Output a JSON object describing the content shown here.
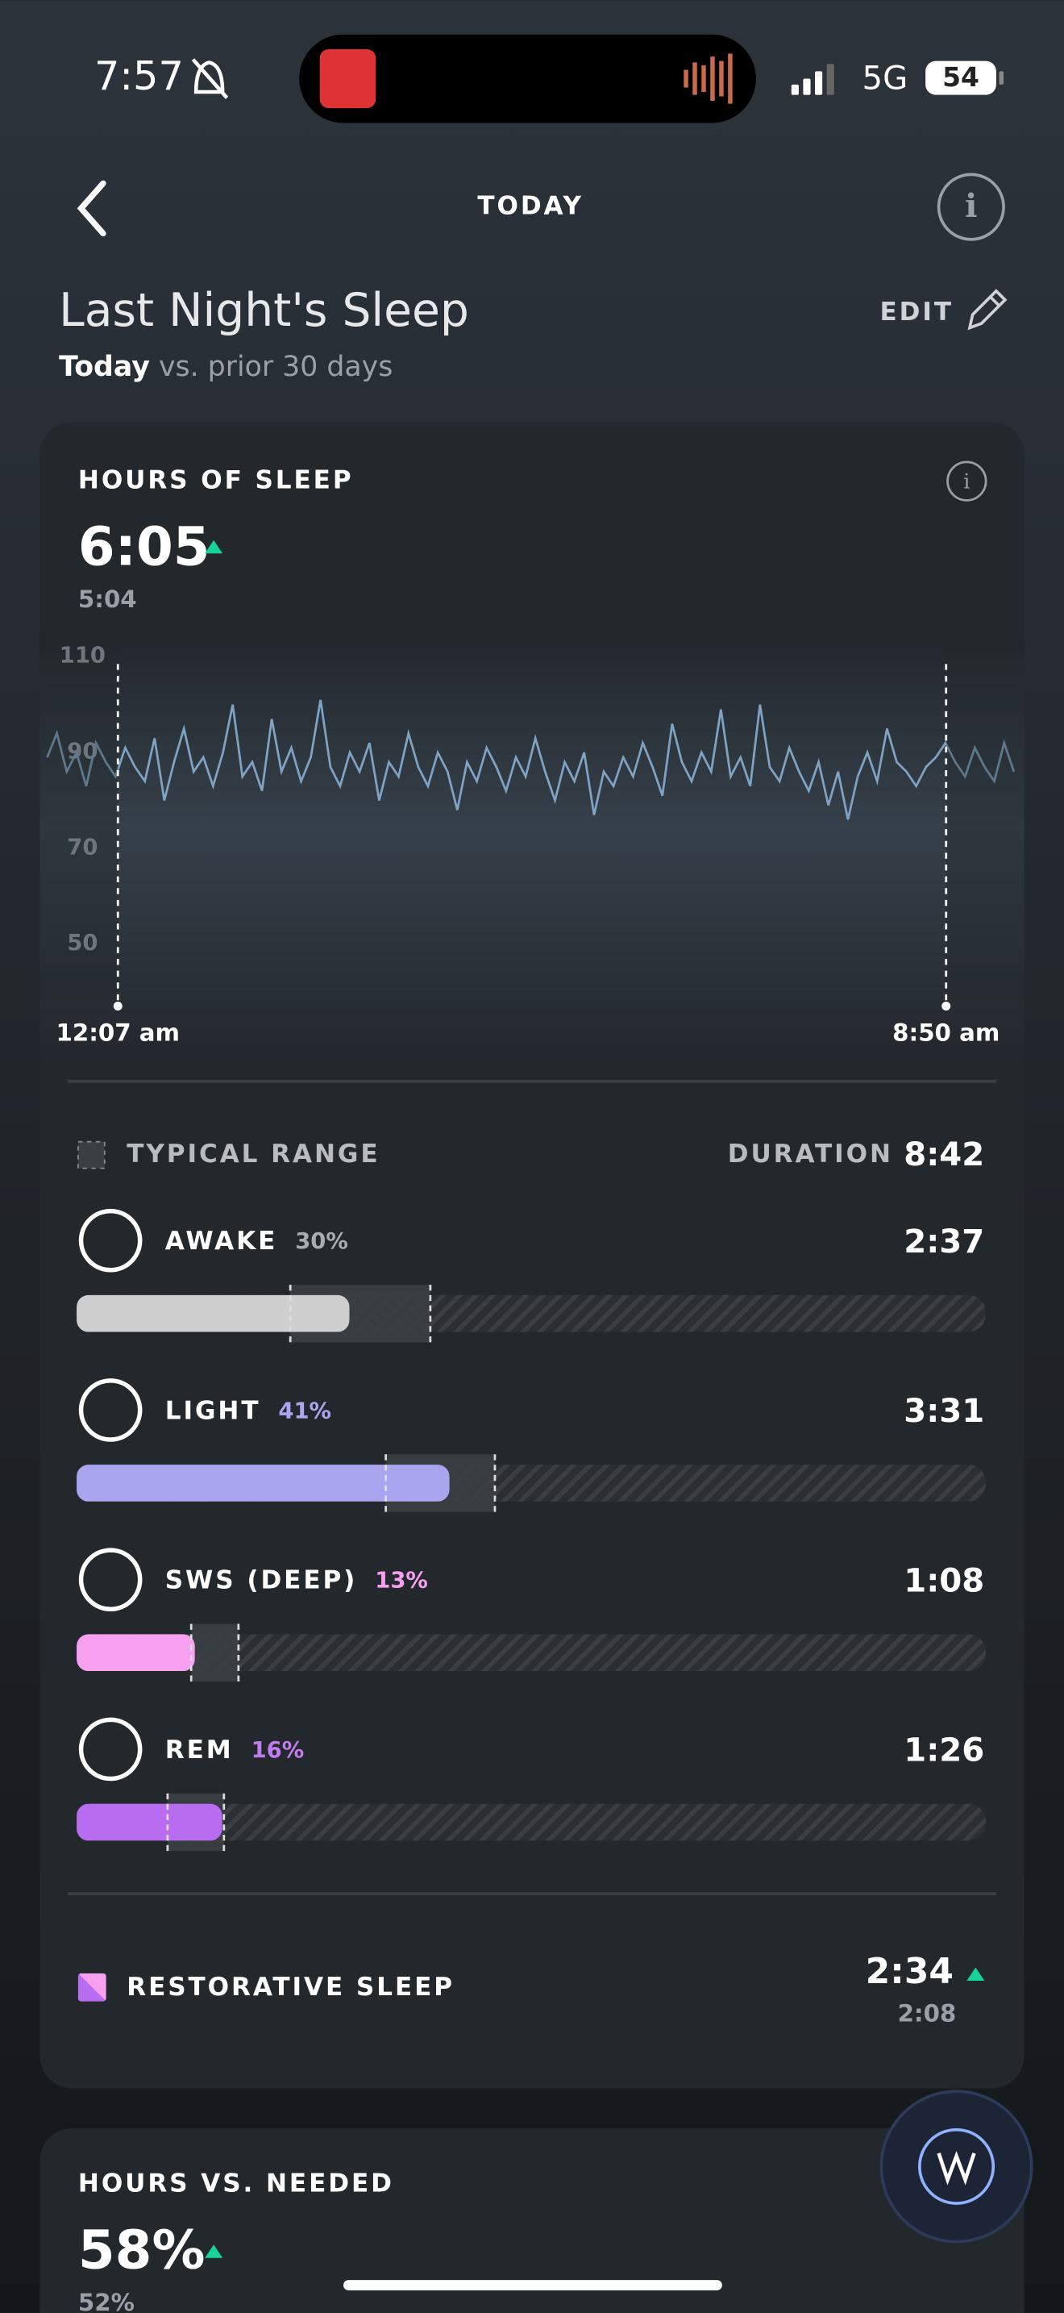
{
  "status_bar": {
    "time": "7:57",
    "network": "5G",
    "battery": "54"
  },
  "header": {
    "title": "TODAY"
  },
  "section": {
    "title": "Last Night's Sleep",
    "edit": "EDIT",
    "subtitle_bold": "Today",
    "subtitle_rest": " vs. prior 30 days"
  },
  "sleep_card": {
    "title": "HOURS OF SLEEP",
    "value": "6:05",
    "previous": "5:04",
    "chart": {
      "type": "line",
      "color": "#7ea3c4",
      "ylim": [
        40,
        112
      ],
      "yticks": [
        50,
        70,
        90,
        110
      ],
      "start_label": "12:07 am",
      "end_label": "8:50 am",
      "values": [
        89,
        94,
        86,
        90,
        83,
        92,
        88,
        85,
        91,
        87,
        84,
        93,
        80,
        88,
        95,
        86,
        89,
        83,
        90,
        100,
        85,
        88,
        82,
        97,
        86,
        91,
        84,
        89,
        101,
        87,
        83,
        90,
        86,
        92,
        80,
        88,
        85,
        94,
        87,
        83,
        90,
        86,
        78,
        88,
        84,
        91,
        87,
        82,
        89,
        85,
        93,
        86,
        80,
        88,
        84,
        90,
        77,
        86,
        83,
        89,
        85,
        92,
        87,
        81,
        96,
        88,
        84,
        90,
        86,
        99,
        85,
        89,
        83,
        100,
        87,
        84,
        91,
        86,
        82,
        88,
        79,
        86,
        76,
        85,
        90,
        84,
        95,
        88,
        86,
        83,
        87,
        89,
        92,
        88,
        85,
        91,
        87,
        84,
        92,
        86
      ]
    },
    "legend": "TYPICAL RANGE",
    "duration_label": "DURATION",
    "duration": "8:42",
    "stages": [
      {
        "name": "AWAKE",
        "percent_label": "30%",
        "percent": 30,
        "duration": "2:37",
        "color": "#cfcfcf",
        "label_color": "#a8acb0",
        "typical_range": [
          23.5,
          38.9
        ]
      },
      {
        "name": "LIGHT",
        "percent_label": "41%",
        "percent": 41,
        "duration": "3:31",
        "color": "#a9a5ef",
        "label_color": "#a9a5ef",
        "typical_range": [
          34,
          46
        ]
      },
      {
        "name": "SWS (DEEP)",
        "percent_label": "13%",
        "percent": 13,
        "duration": "1:08",
        "color": "#f7a0ef",
        "label_color": "#f7a0ef",
        "typical_range": [
          12.6,
          17.8
        ]
      },
      {
        "name": "REM",
        "percent_label": "16%",
        "percent": 16,
        "duration": "1:26",
        "color": "#b86cf0",
        "label_color": "#c27cf0",
        "typical_range": [
          10,
          16.2
        ]
      }
    ],
    "restorative": {
      "label": "RESTORATIVE SLEEP",
      "value": "2:34",
      "previous": "2:08"
    }
  },
  "needed_card": {
    "title": "HOURS VS. NEEDED",
    "value": "58%",
    "previous": "52%"
  }
}
